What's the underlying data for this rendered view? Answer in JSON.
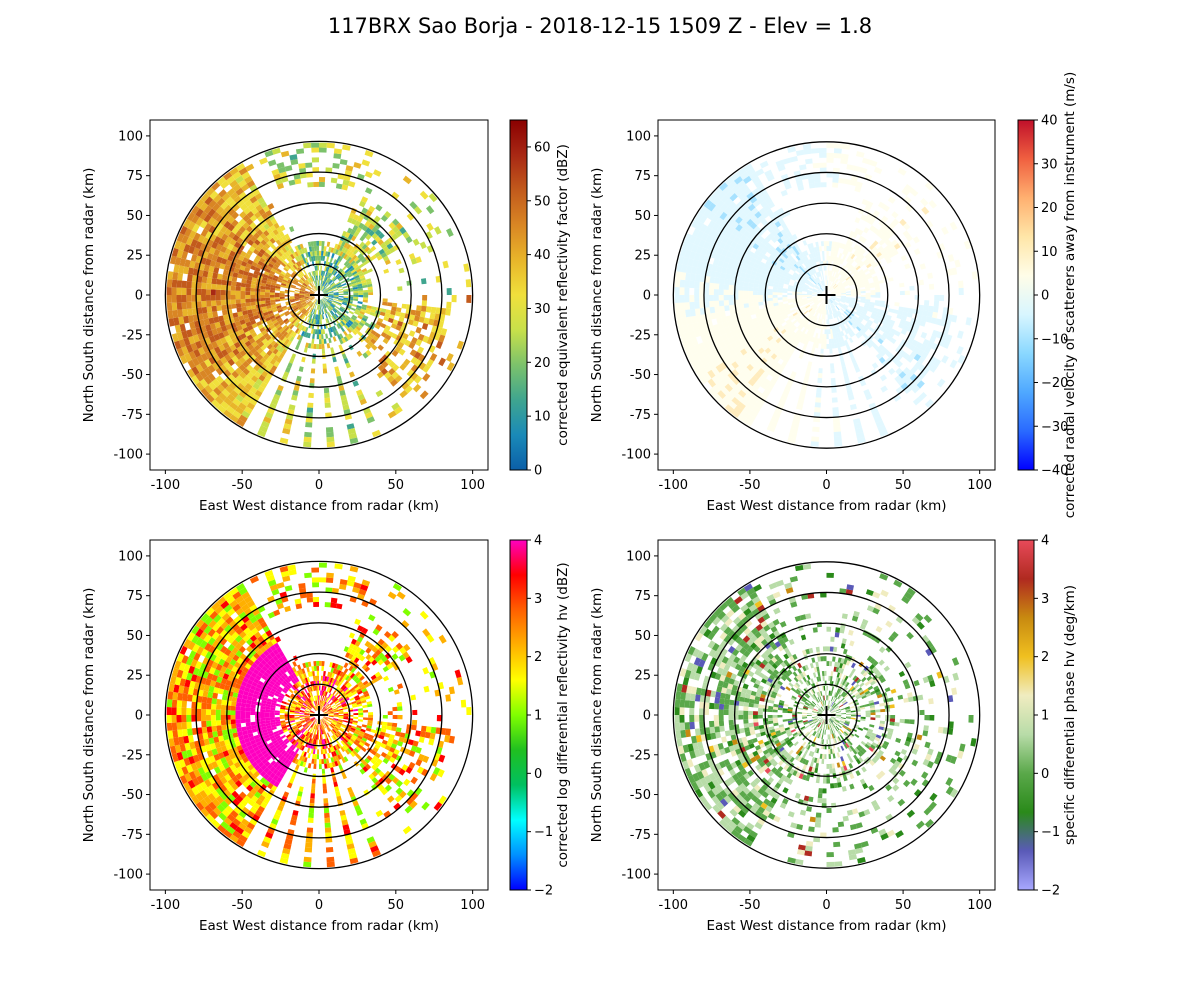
{
  "figure": {
    "suptitle": "117BRX Sao Borja - 2018-12-15 1509 Z -  Elev = 1.8"
  },
  "chart_data": [
    {
      "type": "heatmap",
      "field": "reflectivity",
      "xlabel": "East West distance from radar (km)",
      "ylabel": "North South distance from radar (km)",
      "xlim": [
        -110,
        110
      ],
      "ylim": [
        -110,
        110
      ],
      "xticks": [
        -100,
        -50,
        0,
        50,
        100
      ],
      "yticks": [
        -100,
        -75,
        -50,
        -25,
        0,
        25,
        50,
        75,
        100
      ],
      "range_rings_km": [
        20,
        40,
        60,
        80,
        100
      ],
      "colorbar": {
        "label": "corrected equivalent reflectivity factor (dBZ)",
        "min": 0,
        "max": 65,
        "ticks": [
          0,
          10,
          20,
          30,
          40,
          50,
          60
        ],
        "colors": [
          "#0b5fa8",
          "#1a8ab8",
          "#3fa58f",
          "#7cc26b",
          "#c8e04a",
          "#f0e03c",
          "#e8b52a",
          "#d98624",
          "#c25a1c",
          "#a82814",
          "#8a0000"
        ]
      }
    },
    {
      "type": "heatmap",
      "field": "velocity",
      "xlabel": "East West distance from radar (km)",
      "ylabel": "North South distance from radar (km)",
      "xlim": [
        -110,
        110
      ],
      "ylim": [
        -110,
        110
      ],
      "xticks": [
        -100,
        -50,
        0,
        50,
        100
      ],
      "yticks": [
        -100,
        -75,
        -50,
        -25,
        0,
        25,
        50,
        75,
        100
      ],
      "range_rings_km": [
        20,
        40,
        60,
        80,
        100
      ],
      "colorbar": {
        "label": "corrected radial velocity of scatterers away from instrument (m/s)",
        "min": -40,
        "max": 40,
        "ticks": [
          -40,
          -30,
          -20,
          -10,
          0,
          10,
          20,
          30,
          40
        ],
        "colors": [
          "#0000ff",
          "#2a6aff",
          "#4fa8ff",
          "#8ad8ff",
          "#d8f6ff",
          "#fffde8",
          "#ffe6a8",
          "#ffb070",
          "#f06040",
          "#c0102a"
        ]
      }
    },
    {
      "type": "heatmap",
      "field": "differential_reflectivity",
      "xlabel": "East West distance from radar (km)",
      "ylabel": "North South distance from radar (km)",
      "xlim": [
        -110,
        110
      ],
      "ylim": [
        -110,
        110
      ],
      "xticks": [
        -100,
        -50,
        0,
        50,
        100
      ],
      "yticks": [
        -100,
        -75,
        -50,
        -25,
        0,
        25,
        50,
        75,
        100
      ],
      "range_rings_km": [
        20,
        40,
        60,
        80,
        100
      ],
      "colorbar": {
        "label": "corrected log differential reflectivity hv (dBZ)",
        "min": -2,
        "max": 4,
        "ticks": [
          -2,
          -1,
          0,
          1,
          2,
          3,
          4
        ],
        "colors": [
          "#0000ff",
          "#0090ff",
          "#00ffff",
          "#00c060",
          "#20c020",
          "#80ff00",
          "#ffff00",
          "#ffb000",
          "#ff6000",
          "#ff0000",
          "#ff00c0"
        ]
      }
    },
    {
      "type": "heatmap",
      "field": "specific_differential_phase",
      "xlabel": "East West distance from radar (km)",
      "ylabel": "North South distance from radar (km)",
      "xlim": [
        -110,
        110
      ],
      "ylim": [
        -110,
        110
      ],
      "xticks": [
        -100,
        -50,
        0,
        50,
        100
      ],
      "yticks": [
        -100,
        -75,
        -50,
        -25,
        0,
        25,
        50,
        75,
        100
      ],
      "range_rings_km": [
        20,
        40,
        60,
        80,
        100
      ],
      "colorbar": {
        "label": "specific differential phase hv (deg/km)",
        "min": -2,
        "max": 4,
        "ticks": [
          -2,
          -1,
          0,
          1,
          2,
          3,
          4
        ],
        "colors": [
          "#a8a8ff",
          "#5a5ab8",
          "#2a8a1a",
          "#5aa84a",
          "#b8dca8",
          "#f0ecc0",
          "#f0c020",
          "#c88a10",
          "#b02a20",
          "#e84a5a"
        ]
      }
    }
  ]
}
